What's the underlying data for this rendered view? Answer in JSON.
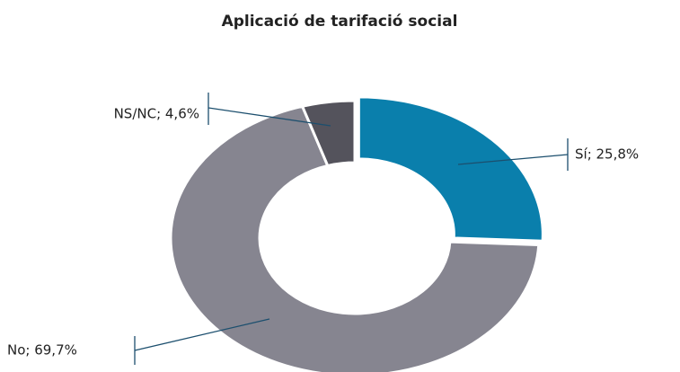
{
  "chart_data": {
    "type": "donut",
    "title": "Aplicació de tarifació social",
    "values": [
      25.8,
      69.7,
      4.6
    ],
    "value_labels": [
      "Sí; 25,8%",
      "No; 69,7%",
      "NS/NC; 4,6%"
    ],
    "colors": [
      "#0a7fac",
      "#868590",
      "#54535c"
    ]
  }
}
